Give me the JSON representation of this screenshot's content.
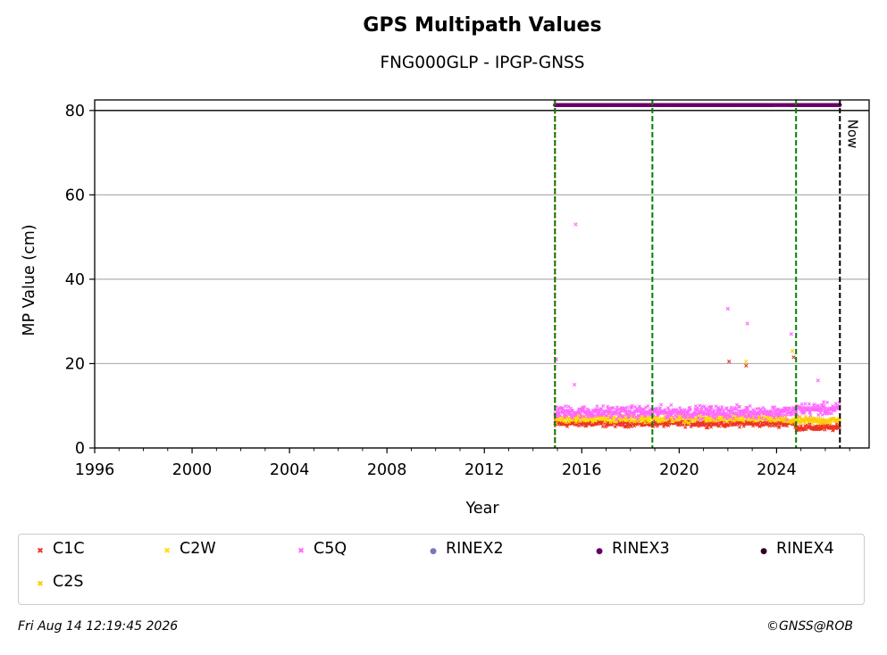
{
  "chart_data": {
    "type": "scatter",
    "title": "GPS Multipath Values",
    "subtitle": "FNG000GLP - IPGP-GNSS",
    "xlabel": "Year",
    "ylabel": "MP Value (cm)",
    "xlim": [
      1996,
      2027.8
    ],
    "ylim": [
      0,
      82.5
    ],
    "x_ticks": [
      "1996",
      "2000",
      "2004",
      "2008",
      "2012",
      "2016",
      "2020",
      "2024"
    ],
    "y_ticks": [
      "0",
      "20",
      "40",
      "60",
      "80"
    ],
    "grid": "y",
    "reference_line_y": 80,
    "vertical_lines": [
      {
        "x": 2014.9,
        "color": "#ff0000",
        "style": "dotted"
      },
      {
        "x": 2014.9,
        "color": "#008000",
        "style": "dashed"
      },
      {
        "x": 2018.9,
        "color": "#008000",
        "style": "dashed"
      },
      {
        "x": 2024.8,
        "color": "#008000",
        "style": "dashed"
      },
      {
        "x": 2026.6,
        "color": "#000000",
        "style": "dashed",
        "label": "Now"
      }
    ],
    "series": [
      {
        "name": "C1C",
        "color": "#ee3322",
        "marker": "x",
        "x_range": [
          2014.9,
          2026.6
        ],
        "typical": 5.8,
        "spread": 0.7
      },
      {
        "name": "C2W",
        "color": "#ffdd00",
        "marker": "x",
        "x_range": [
          2014.9,
          2024.2
        ],
        "typical": 7.0,
        "spread": 0.8
      },
      {
        "name": "C5Q",
        "color": "#ff66ff",
        "marker": "x",
        "x_range": [
          2014.9,
          2026.6
        ],
        "typical": 8.5,
        "spread": 1.3
      },
      {
        "name": "RINEX2",
        "color": "#7777bb",
        "marker": "dot"
      },
      {
        "name": "RINEX3",
        "color": "#660066",
        "marker": "dot",
        "x_range": [
          2014.9,
          2026.6
        ],
        "y": 81.3
      },
      {
        "name": "RINEX4",
        "color": "#330022",
        "marker": "dot"
      },
      {
        "name": "C2S",
        "color": "#ffcc00",
        "marker": "x",
        "x_range": [
          2024.2,
          2026.6
        ],
        "typical": 6.5,
        "spread": 0.8
      }
    ],
    "outliers": [
      {
        "series": "C5Q",
        "x": 2015.75,
        "y": 53
      },
      {
        "series": "C5Q",
        "x": 2014.95,
        "y": 21
      },
      {
        "series": "C5Q",
        "x": 2022.0,
        "y": 33
      },
      {
        "series": "C1C",
        "x": 2022.05,
        "y": 20.5
      },
      {
        "series": "C5Q",
        "x": 2022.8,
        "y": 29.5
      },
      {
        "series": "C2W",
        "x": 2022.75,
        "y": 20.5
      },
      {
        "series": "C1C",
        "x": 2022.75,
        "y": 19.5
      },
      {
        "series": "C5Q",
        "x": 2024.6,
        "y": 27
      },
      {
        "series": "C2S",
        "x": 2024.65,
        "y": 23
      },
      {
        "series": "C1C",
        "x": 2024.7,
        "y": 21.5
      },
      {
        "series": "C5Q",
        "x": 2015.7,
        "y": 15
      },
      {
        "series": "C5Q",
        "x": 2018.9,
        "y": 13
      },
      {
        "series": "C5Q",
        "x": 2025.7,
        "y": 16
      }
    ]
  },
  "legend": [
    {
      "label": "C1C",
      "marker": "✖",
      "color": "#ee3322"
    },
    {
      "label": "C2W",
      "marker": "✖",
      "color": "#ffdd00"
    },
    {
      "label": "C5Q",
      "marker": "✖",
      "color": "#ff66ff"
    },
    {
      "label": "RINEX2",
      "marker": "●",
      "color": "#7777bb"
    },
    {
      "label": "RINEX3",
      "marker": "●",
      "color": "#660066"
    },
    {
      "label": "RINEX4",
      "marker": "●",
      "color": "#330022"
    },
    {
      "label": "C2S",
      "marker": "✖",
      "color": "#ffcc00"
    }
  ],
  "footer": {
    "date": "Fri Aug 14 12:19:45 2026",
    "credit": "©GNSS@ROB"
  }
}
